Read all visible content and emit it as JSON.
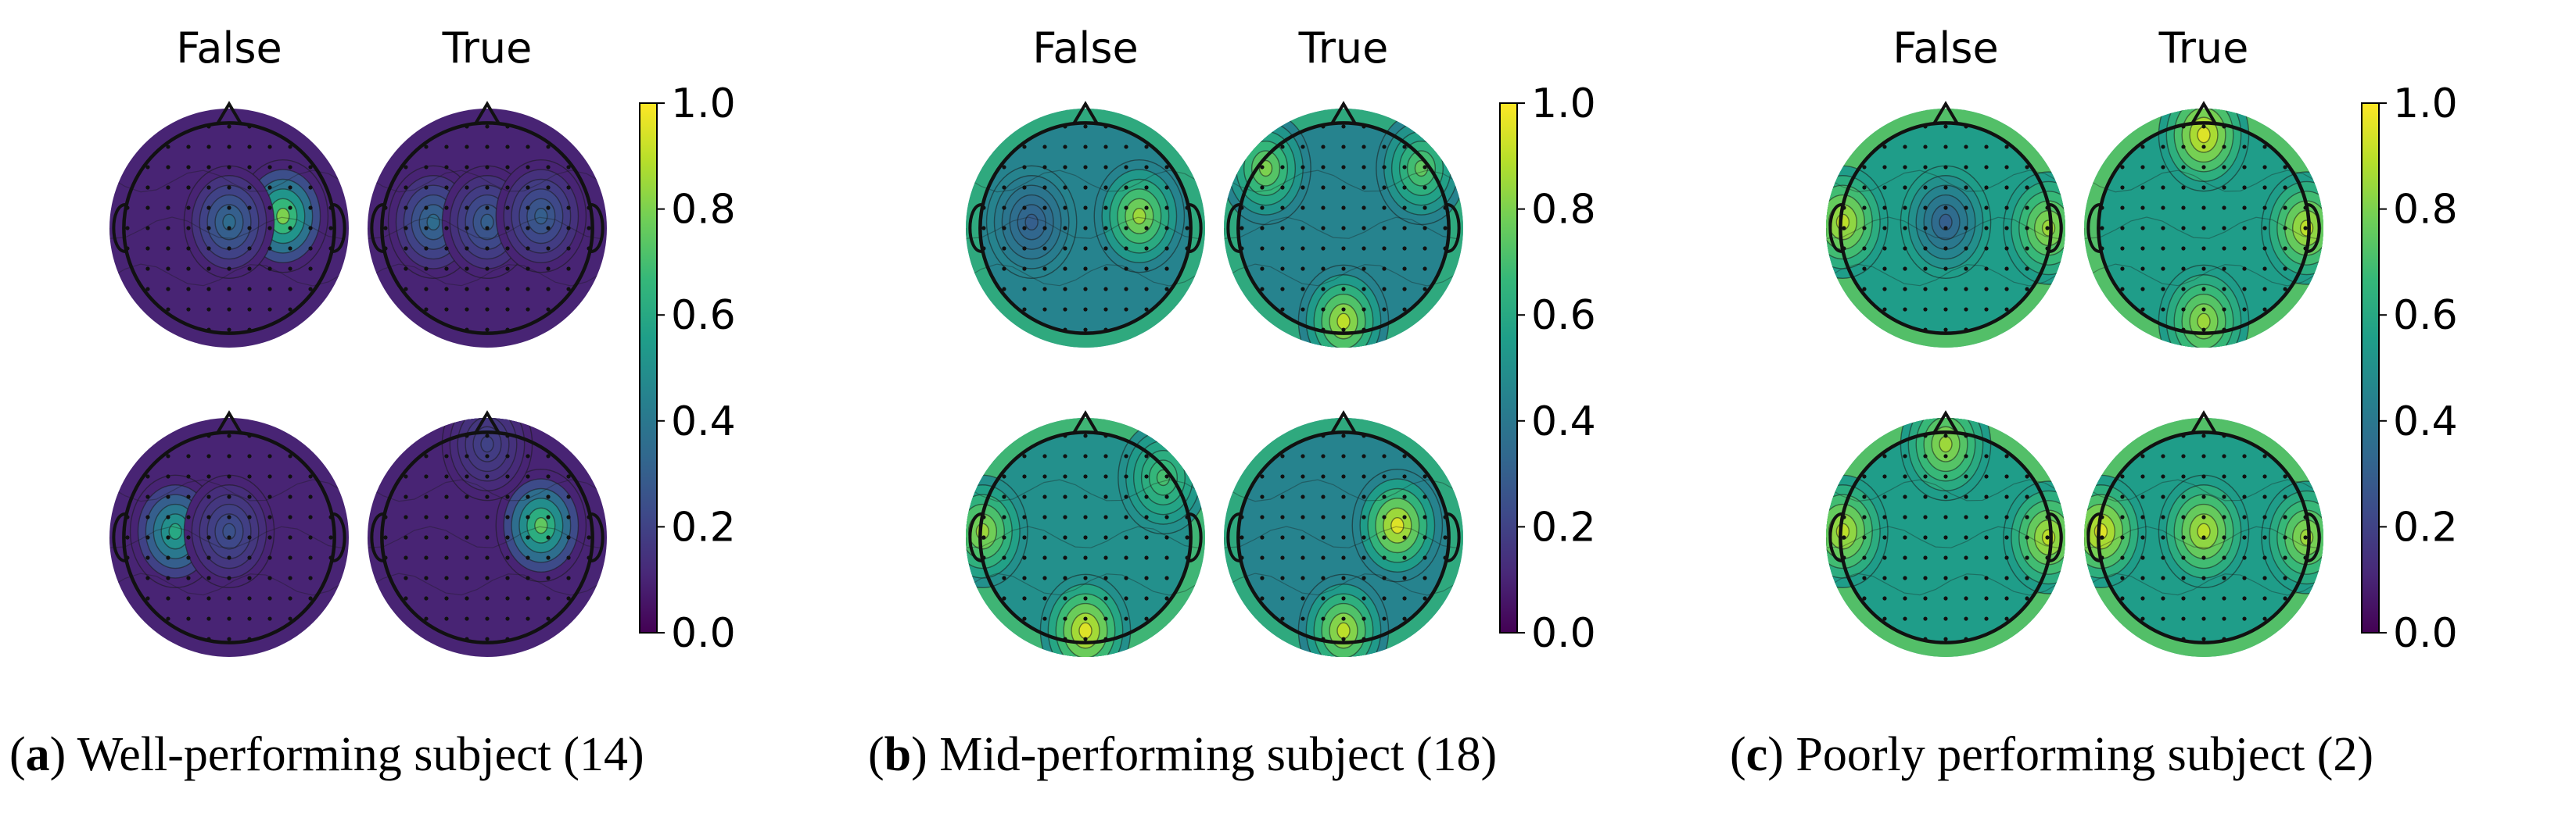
{
  "column_titles": [
    "False",
    "True"
  ],
  "colorbar": {
    "min": 0.0,
    "max": 1.0,
    "ticks": [
      "0.0",
      "0.2",
      "0.4",
      "0.6",
      "0.8",
      "1.0"
    ],
    "colormap": "viridis",
    "colors": [
      "#440154",
      "#482878",
      "#3e4989",
      "#31688e",
      "#26828e",
      "#1f9e89",
      "#35b779",
      "#6ece58",
      "#b5de2b",
      "#fde725"
    ]
  },
  "panels": [
    {
      "id": "a",
      "caption_letter": "a",
      "caption_text": "Well-performing subject (14)",
      "background_level": 0.1,
      "maps": [
        {
          "row": 0,
          "col": "False",
          "level": 0.1,
          "hotspots": [
            {
              "label": "right-central",
              "value": 0.8
            },
            {
              "label": "center",
              "value": 0.35
            }
          ]
        },
        {
          "row": 0,
          "col": "True",
          "level": 0.1,
          "hotspots": [
            {
              "label": "left-central",
              "value": 0.35
            },
            {
              "label": "center",
              "value": 0.3
            },
            {
              "label": "right-central",
              "value": 0.3
            }
          ]
        },
        {
          "row": 1,
          "col": "False",
          "level": 0.1,
          "hotspots": [
            {
              "label": "left-central",
              "value": 0.6
            },
            {
              "label": "center",
              "value": 0.25
            }
          ]
        },
        {
          "row": 1,
          "col": "True",
          "level": 0.1,
          "hotspots": [
            {
              "label": "right-central",
              "value": 0.75
            },
            {
              "label": "frontal",
              "value": 0.2
            }
          ]
        }
      ]
    },
    {
      "id": "b",
      "caption_letter": "b",
      "caption_text": "Mid-performing subject (18)",
      "background_level": 0.45,
      "maps": [
        {
          "row": 0,
          "col": "False",
          "level": 0.45,
          "hotspots": [
            {
              "label": "right-central",
              "value": 0.85
            },
            {
              "label": "left-central",
              "value": 0.3
            }
          ]
        },
        {
          "row": 0,
          "col": "True",
          "level": 0.45,
          "hotspots": [
            {
              "label": "occipital",
              "value": 0.9
            },
            {
              "label": "left-frontal",
              "value": 0.8
            },
            {
              "label": "right-frontal",
              "value": 0.75
            }
          ]
        },
        {
          "row": 1,
          "col": "False",
          "level": 0.5,
          "hotspots": [
            {
              "label": "occipital",
              "value": 0.95
            },
            {
              "label": "left-temporal",
              "value": 0.85
            },
            {
              "label": "right-frontal",
              "value": 0.7
            }
          ]
        },
        {
          "row": 1,
          "col": "True",
          "level": 0.45,
          "hotspots": [
            {
              "label": "right-central",
              "value": 0.95
            },
            {
              "label": "occipital",
              "value": 0.9
            }
          ]
        }
      ]
    },
    {
      "id": "c",
      "caption_letter": "c",
      "caption_text": "Poorly performing subject (2)",
      "background_level": 0.6,
      "maps": [
        {
          "row": 0,
          "col": "False",
          "level": 0.55,
          "hotspots": [
            {
              "label": "left-temporal",
              "value": 0.9
            },
            {
              "label": "right-temporal",
              "value": 0.85
            },
            {
              "label": "center",
              "value": 0.3
            }
          ]
        },
        {
          "row": 0,
          "col": "True",
          "level": 0.55,
          "hotspots": [
            {
              "label": "frontal",
              "value": 0.95
            },
            {
              "label": "right-temporal",
              "value": 0.9
            },
            {
              "label": "occipital",
              "value": 0.85
            }
          ]
        },
        {
          "row": 1,
          "col": "False",
          "level": 0.55,
          "hotspots": [
            {
              "label": "left-temporal",
              "value": 0.9
            },
            {
              "label": "right-temporal",
              "value": 0.9
            },
            {
              "label": "frontal",
              "value": 0.85
            }
          ]
        },
        {
          "row": 1,
          "col": "True",
          "level": 0.55,
          "hotspots": [
            {
              "label": "left-temporal",
              "value": 0.95
            },
            {
              "label": "right-temporal",
              "value": 0.85
            },
            {
              "label": "center",
              "value": 0.9
            }
          ]
        }
      ]
    }
  ]
}
